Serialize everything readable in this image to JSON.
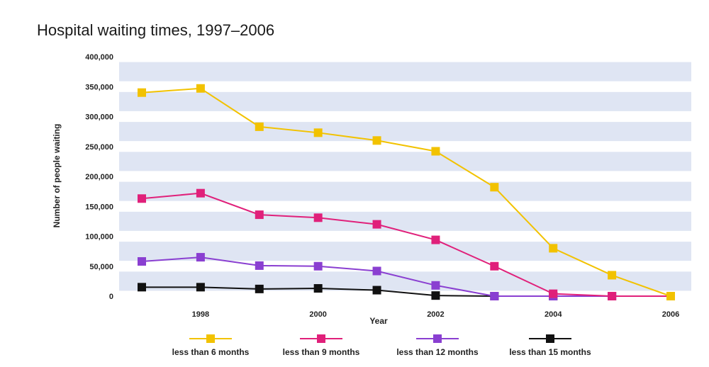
{
  "chart_data": {
    "type": "line",
    "title": "Hospital waiting times, 1997–2006",
    "xlabel": "Year",
    "ylabel": "Number of people waiting",
    "x": [
      1997,
      1998,
      1999,
      2000,
      2001,
      2002,
      2003,
      2004,
      2005,
      2006
    ],
    "x_tick_labels": [
      "1998",
      "2000",
      "2002",
      "2004",
      "2006"
    ],
    "x_tick_values": [
      1998,
      2000,
      2002,
      2004,
      2006
    ],
    "ylim": [
      0,
      400000
    ],
    "y_tick_values": [
      0,
      50000,
      100000,
      150000,
      200000,
      250000,
      300000,
      350000,
      400000
    ],
    "y_tick_labels": [
      "0",
      "50,000",
      "100,000",
      "150,000",
      "200,000",
      "250,000",
      "300,000",
      "350,000",
      "400,000"
    ],
    "grid": "horizontal bands",
    "legend_position": "bottom",
    "series": [
      {
        "name": "less than 6 months",
        "color": "#f2c200",
        "values": [
          340000,
          347000,
          283000,
          273000,
          260000,
          242000,
          182000,
          80000,
          35000,
          0
        ]
      },
      {
        "name": "less than 9 months",
        "color": "#e0207a",
        "values": [
          163000,
          172000,
          136000,
          131000,
          120000,
          94000,
          50000,
          4000,
          0,
          0
        ]
      },
      {
        "name": "less than 12 months",
        "color": "#8a3fd1",
        "values": [
          58000,
          65000,
          51000,
          50000,
          42000,
          18000,
          0,
          0,
          0,
          0
        ]
      },
      {
        "name": "less than 15 months",
        "color": "#111111",
        "values": [
          15000,
          15000,
          12000,
          13000,
          10000,
          1000,
          0,
          0,
          0,
          0
        ]
      }
    ]
  }
}
